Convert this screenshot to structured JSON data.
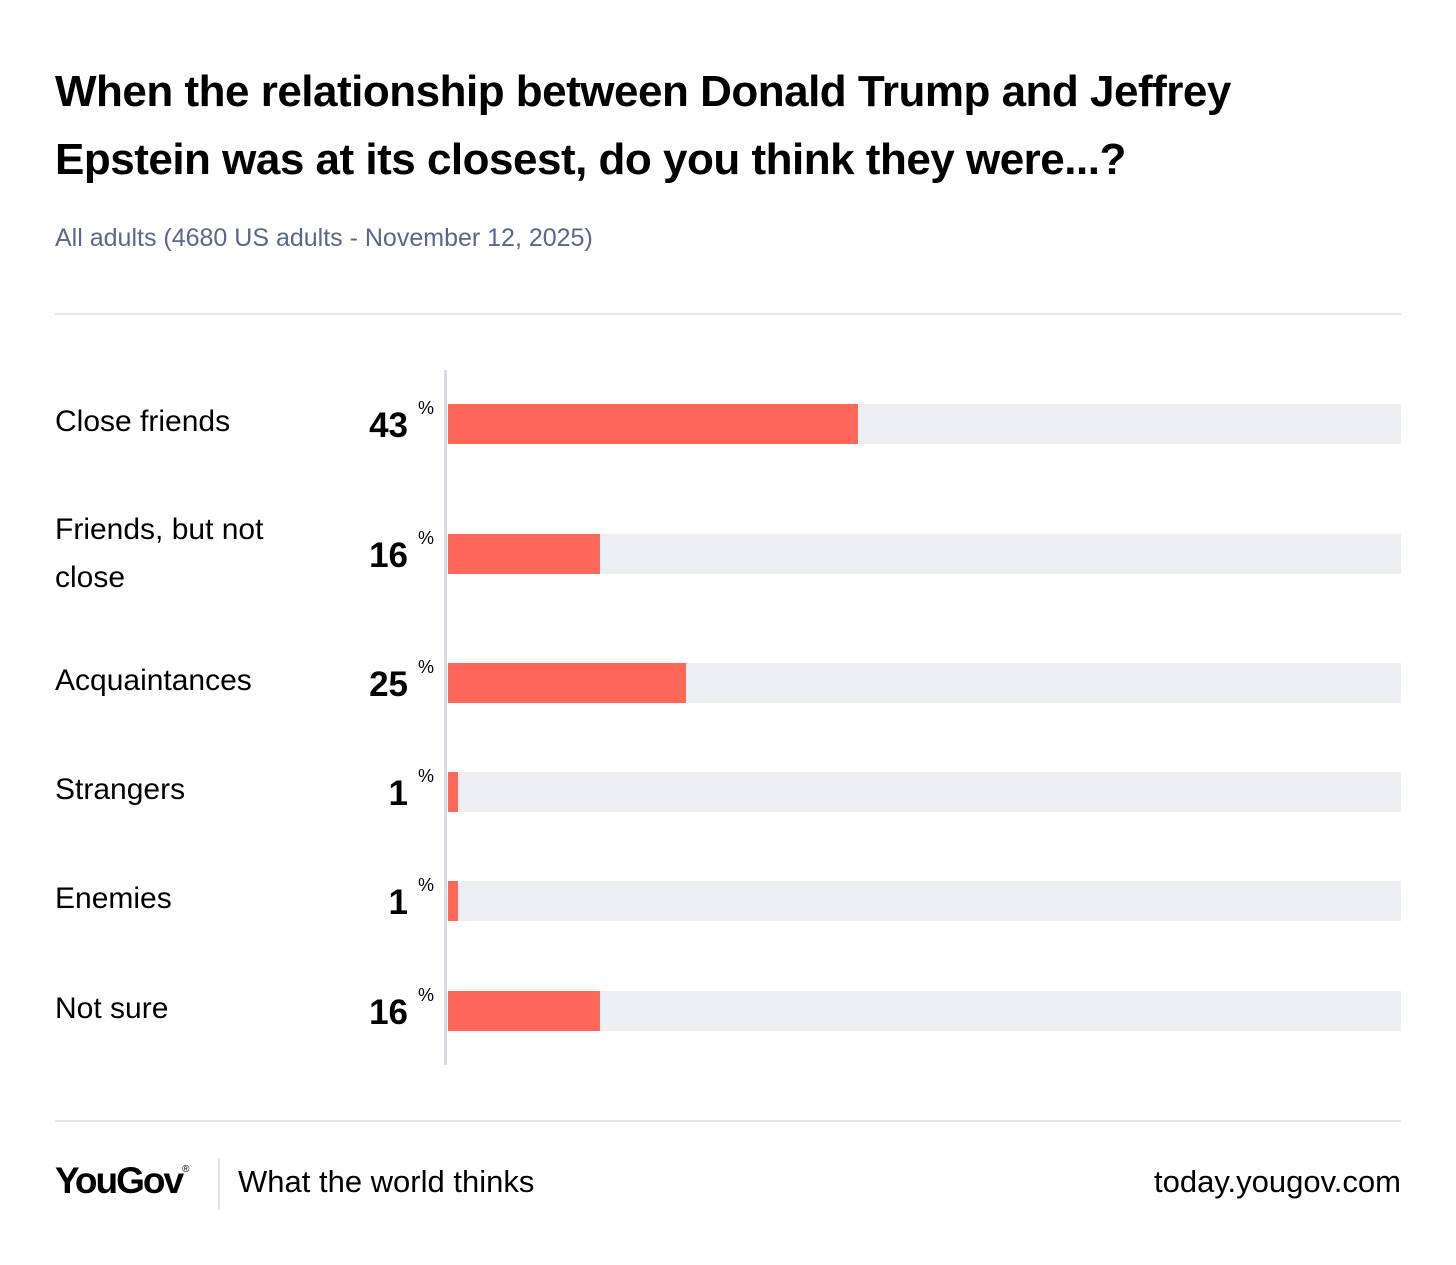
{
  "chart_data": {
    "type": "bar",
    "orientation": "horizontal",
    "title": "When the relationship between Donald Trump and Jeffrey Epstein was at its closest, do you think they were...?",
    "subtitle": "All adults (4680 US adults - November 12, 2025)",
    "categories": [
      "Close friends",
      "Friends, but not close",
      "Acquaintances",
      "Strangers",
      "Enemies",
      "Not sure"
    ],
    "values": [
      43,
      16,
      25,
      1,
      1,
      16
    ],
    "unit": "%",
    "xlim": [
      0,
      100
    ],
    "bar_color": "#ff6759",
    "track_color": "#edeef1"
  },
  "footer": {
    "logo": "YouGov",
    "logo_mark": "®",
    "tagline": "What the world thinks",
    "site": "today.yougov.com"
  }
}
